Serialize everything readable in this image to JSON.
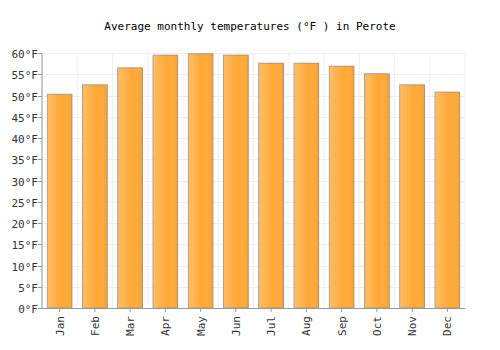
{
  "chart_data": {
    "type": "bar",
    "title": "Average monthly temperatures (°F ) in Perote",
    "categories": [
      "Jan",
      "Feb",
      "Mar",
      "Apr",
      "May",
      "Jun",
      "Jul",
      "Aug",
      "Sep",
      "Oct",
      "Nov",
      "Dec"
    ],
    "values": [
      50.3,
      52.5,
      56.5,
      59.5,
      59.8,
      59.5,
      57.6,
      57.6,
      56.9,
      55.1,
      52.5,
      50.8
    ],
    "color": "#ffa733",
    "ylim": [
      0,
      60
    ],
    "yticks": [
      {
        "value": 0,
        "label": "0°F"
      },
      {
        "value": 5,
        "label": "5°F"
      },
      {
        "value": 10,
        "label": "10°F"
      },
      {
        "value": 15,
        "label": "15°F"
      },
      {
        "value": 20,
        "label": "20°F"
      },
      {
        "value": 25,
        "label": "25°F"
      },
      {
        "value": 30,
        "label": "30°F"
      },
      {
        "value": 35,
        "label": "35°F"
      },
      {
        "value": 40,
        "label": "40°F"
      },
      {
        "value": 45,
        "label": "45°F"
      },
      {
        "value": 50,
        "label": "50°F"
      },
      {
        "value": 55,
        "label": "55°F"
      },
      {
        "value": 60,
        "label": "60°F"
      }
    ],
    "grid": true
  }
}
